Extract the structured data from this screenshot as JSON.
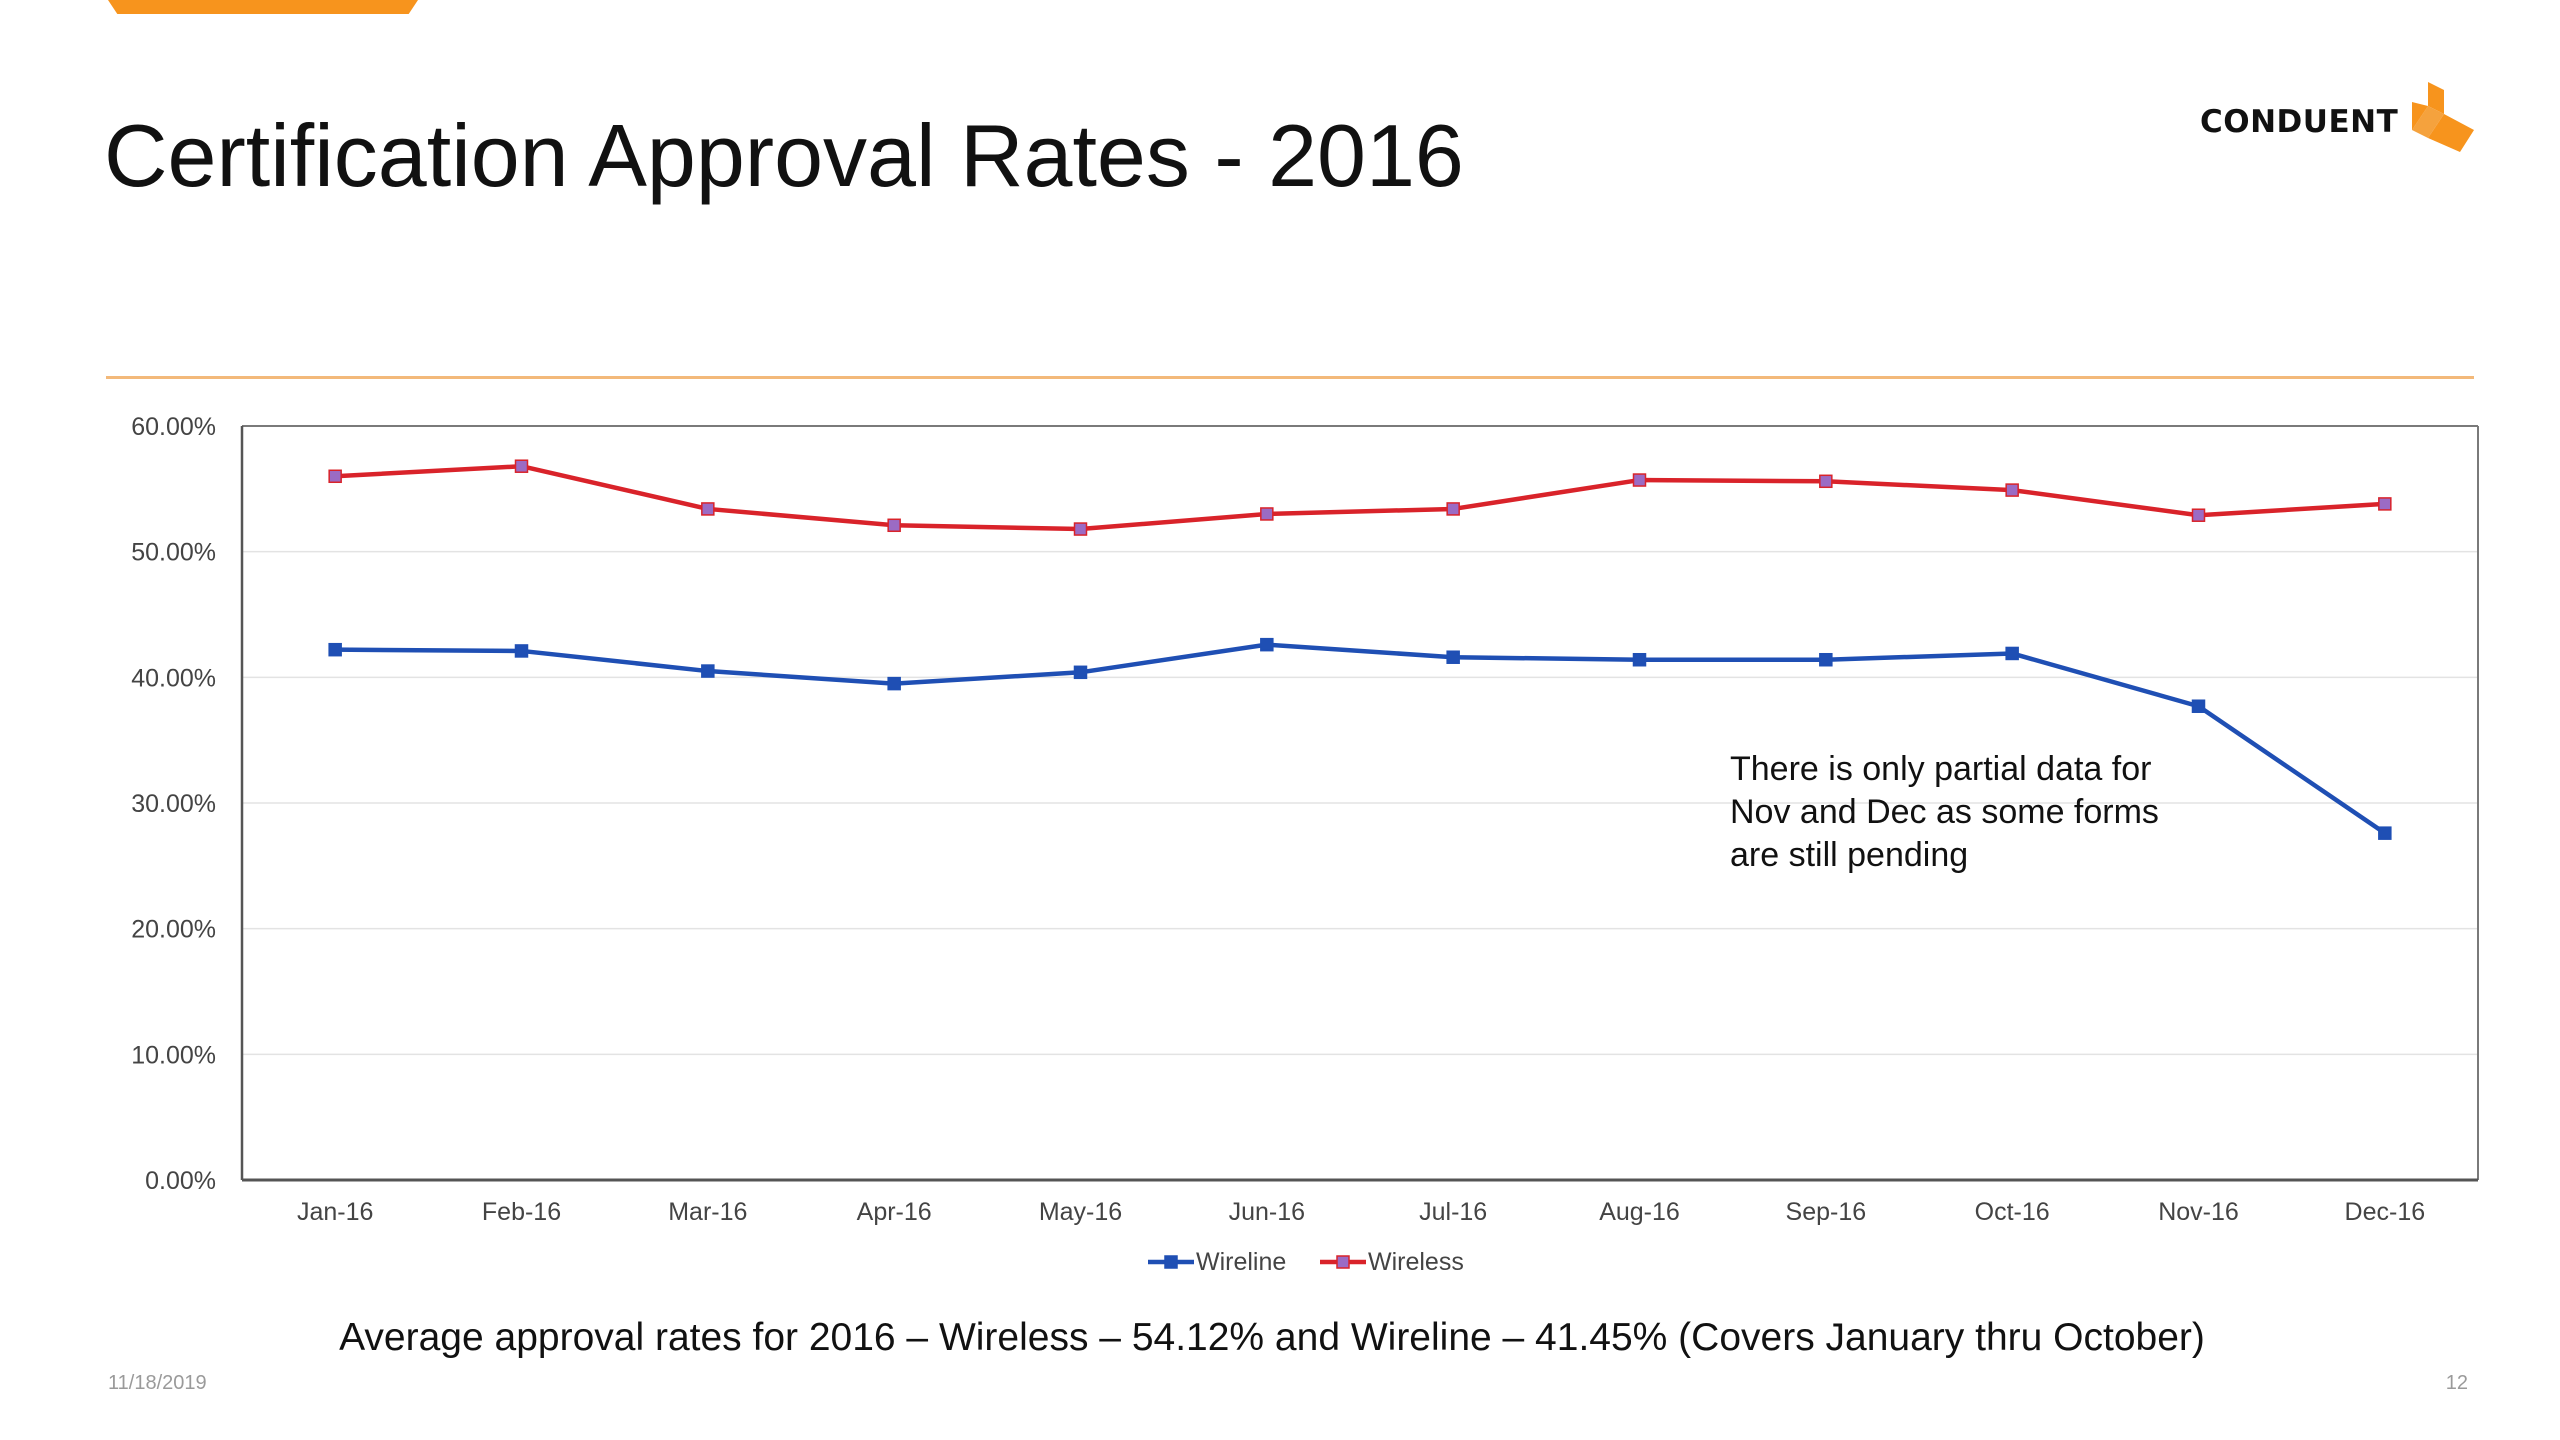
{
  "slide": {
    "title": "Certification Approval Rates - 2016",
    "logo_text": "CONDUENT",
    "caption": "Average approval rates for 2016 – Wireless – 54.12% and Wireline – 41.45% (Covers January thru October)",
    "footer_date": "11/18/2019",
    "page_number": "12",
    "accent_color": "#f7941d"
  },
  "chart_data": {
    "type": "line",
    "categories": [
      "Jan-16",
      "Feb-16",
      "Mar-16",
      "Apr-16",
      "May-16",
      "Jun-16",
      "Jul-16",
      "Aug-16",
      "Sep-16",
      "Oct-16",
      "Nov-16",
      "Dec-16"
    ],
    "series": [
      {
        "name": "Wireline",
        "color": "#1f4fb4",
        "marker": "square",
        "values": [
          42.2,
          42.1,
          40.5,
          39.5,
          40.4,
          42.6,
          41.6,
          41.4,
          41.4,
          41.9,
          37.7,
          27.6
        ]
      },
      {
        "name": "Wireless",
        "color": "#d9232a",
        "marker_color": "#9b6bc4",
        "marker": "square",
        "values": [
          56.0,
          56.8,
          53.4,
          52.1,
          51.8,
          53.0,
          53.4,
          55.7,
          55.6,
          54.9,
          52.9,
          53.8
        ]
      }
    ],
    "ylim": [
      0,
      60
    ],
    "yticks": [
      "0.00%",
      "10.00%",
      "20.00%",
      "30.00%",
      "40.00%",
      "50.00%",
      "60.00%"
    ],
    "grid": true,
    "legend_position": "bottom",
    "annotation": {
      "lines": [
        "There is only partial data for",
        "Nov and Dec as some forms",
        "are still pending"
      ]
    }
  }
}
